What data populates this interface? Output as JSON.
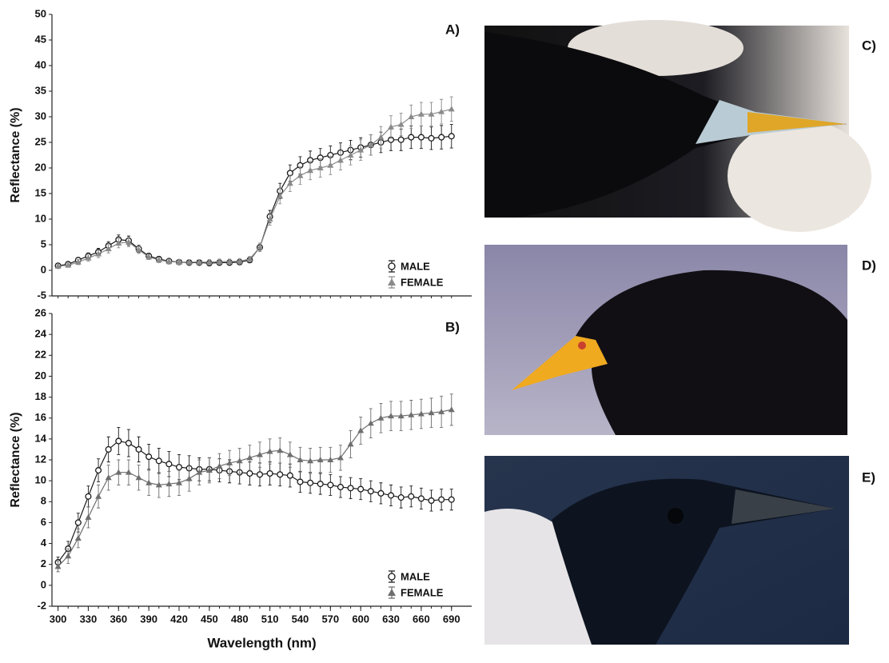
{
  "chart_data": [
    {
      "type": "line",
      "label": "A)",
      "ylabel": "Reflectance (%)",
      "x": [
        300,
        310,
        320,
        330,
        340,
        350,
        360,
        370,
        380,
        390,
        400,
        410,
        420,
        430,
        440,
        450,
        460,
        470,
        480,
        490,
        500,
        510,
        520,
        530,
        540,
        550,
        560,
        570,
        580,
        590,
        600,
        610,
        620,
        630,
        640,
        650,
        660,
        670,
        680,
        690
      ],
      "xlim": [
        294,
        710
      ],
      "ylim": [
        -5,
        50
      ],
      "yticks": [
        -5,
        0,
        5,
        10,
        15,
        20,
        25,
        30,
        35,
        40,
        45,
        50
      ],
      "legend": "lower right",
      "series": [
        {
          "name": "MALE",
          "color": "#1a1a1a",
          "marker": "circle",
          "values": [
            0.9,
            1.2,
            2.0,
            2.8,
            3.6,
            4.8,
            6.0,
            5.8,
            4.2,
            2.8,
            2.2,
            1.8,
            1.6,
            1.5,
            1.5,
            1.4,
            1.5,
            1.5,
            1.6,
            2.0,
            4.5,
            10.5,
            15.5,
            19,
            20.5,
            21.5,
            22,
            22.5,
            23,
            23.5,
            24,
            24.5,
            25,
            25.5,
            25.5,
            26,
            26,
            25.8,
            26,
            26.2
          ],
          "errors": [
            0.3,
            0.4,
            0.5,
            0.6,
            0.7,
            0.8,
            0.9,
            0.9,
            0.7,
            0.5,
            0.5,
            0.5,
            0.5,
            0.5,
            0.5,
            0.5,
            0.5,
            0.5,
            0.5,
            0.5,
            0.8,
            1.2,
            1.5,
            1.6,
            1.7,
            1.8,
            1.8,
            1.8,
            1.9,
            1.9,
            1.9,
            2.0,
            2.0,
            2.1,
            2.1,
            2.2,
            2.2,
            2.2,
            2.3,
            2.3
          ]
        },
        {
          "name": "FEMALE",
          "color": "#8a8a8a",
          "marker": "triangle",
          "values": [
            0.8,
            1.0,
            1.6,
            2.4,
            3.2,
            4.2,
            5.3,
            5.5,
            4.0,
            2.6,
            2.0,
            1.7,
            1.6,
            1.6,
            1.6,
            1.6,
            1.7,
            1.7,
            1.8,
            2.2,
            4.5,
            10,
            14.5,
            17,
            18.5,
            19.5,
            20,
            20.5,
            21.5,
            22.5,
            23.5,
            24.5,
            26,
            28,
            28.5,
            30,
            30.5,
            30.5,
            31,
            31.5
          ],
          "errors": [
            0.3,
            0.4,
            0.5,
            0.6,
            0.7,
            0.8,
            0.9,
            0.9,
            0.7,
            0.5,
            0.5,
            0.5,
            0.5,
            0.5,
            0.5,
            0.5,
            0.5,
            0.5,
            0.5,
            0.5,
            0.8,
            1.2,
            1.5,
            1.6,
            1.7,
            1.8,
            1.8,
            1.8,
            1.9,
            1.9,
            2.0,
            2.0,
            2.1,
            2.2,
            2.2,
            2.3,
            2.3,
            2.3,
            2.4,
            2.4
          ]
        }
      ]
    },
    {
      "type": "line",
      "label": "B)",
      "ylabel": "Reflectance (%)",
      "xlabel": "Wavelength (nm)",
      "x": [
        300,
        310,
        320,
        330,
        340,
        350,
        360,
        370,
        380,
        390,
        400,
        410,
        420,
        430,
        440,
        450,
        460,
        470,
        480,
        490,
        500,
        510,
        520,
        530,
        540,
        550,
        560,
        570,
        580,
        590,
        600,
        610,
        620,
        630,
        640,
        650,
        660,
        670,
        680,
        690
      ],
      "xlim": [
        294,
        710
      ],
      "xticks": [
        300,
        330,
        360,
        390,
        420,
        450,
        480,
        510,
        540,
        570,
        600,
        630,
        660,
        690
      ],
      "ylim": [
        -2,
        26
      ],
      "yticks": [
        -2,
        0,
        2,
        4,
        6,
        8,
        10,
        12,
        14,
        16,
        18,
        20,
        22,
        24,
        26
      ],
      "legend": "lower right",
      "series": [
        {
          "name": "MALE",
          "color": "#1a1a1a",
          "marker": "circle",
          "values": [
            2.2,
            3.5,
            6.0,
            8.5,
            11,
            13,
            13.8,
            13.6,
            13,
            12.3,
            11.9,
            11.6,
            11.3,
            11.2,
            11.1,
            11.1,
            11.0,
            10.9,
            10.8,
            10.7,
            10.6,
            10.7,
            10.6,
            10.5,
            9.9,
            9.8,
            9.7,
            9.6,
            9.4,
            9.3,
            9.2,
            9.0,
            8.8,
            8.6,
            8.4,
            8.5,
            8.3,
            8.1,
            8.2,
            8.2
          ],
          "errors": [
            0.5,
            0.7,
            0.9,
            1.0,
            1.1,
            1.2,
            1.3,
            1.3,
            1.2,
            1.2,
            1.2,
            1.2,
            1.2,
            1.2,
            1.1,
            1.1,
            1.1,
            1.1,
            1.1,
            1.1,
            1.1,
            1.1,
            1.1,
            1.1,
            1.0,
            1.0,
            1.0,
            1.0,
            1.0,
            1.0,
            1.0,
            1.0,
            1.0,
            1.0,
            1.0,
            1.0,
            1.0,
            1.0,
            1.0,
            1.0
          ]
        },
        {
          "name": "FEMALE",
          "color": "#6e6e6e",
          "marker": "triangle",
          "values": [
            1.8,
            2.8,
            4.5,
            6.5,
            8.5,
            10.3,
            10.8,
            10.8,
            10.3,
            9.8,
            9.6,
            9.7,
            9.8,
            10.2,
            10.8,
            11.0,
            11.4,
            11.7,
            11.9,
            12.2,
            12.5,
            12.8,
            12.9,
            12.5,
            12.0,
            11.9,
            12.0,
            12.0,
            12.2,
            13.5,
            14.8,
            15.5,
            16,
            16.2,
            16.2,
            16.3,
            16.4,
            16.5,
            16.6,
            16.8
          ],
          "errors": [
            0.5,
            0.7,
            0.9,
            1.0,
            1.1,
            1.2,
            1.2,
            1.2,
            1.2,
            1.2,
            1.2,
            1.2,
            1.2,
            1.2,
            1.2,
            1.2,
            1.2,
            1.2,
            1.2,
            1.2,
            1.2,
            1.2,
            1.2,
            1.2,
            1.2,
            1.2,
            1.2,
            1.2,
            1.2,
            1.3,
            1.3,
            1.4,
            1.4,
            1.4,
            1.4,
            1.4,
            1.4,
            1.4,
            1.5,
            1.5
          ]
        }
      ]
    }
  ],
  "photos": [
    {
      "label": "C)"
    },
    {
      "label": "D)"
    },
    {
      "label": "E)"
    }
  ]
}
